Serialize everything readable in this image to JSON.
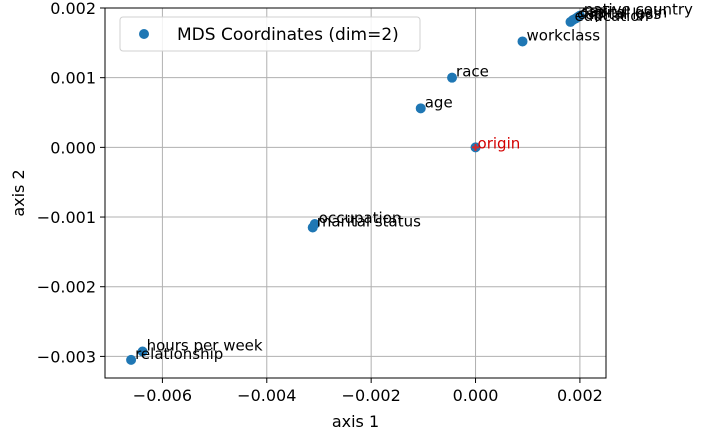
{
  "chart_data": {
    "type": "scatter",
    "xlabel": "axis 1",
    "ylabel": "axis 2",
    "xlim": [
      -0.0071,
      0.0025
    ],
    "ylim": [
      -0.00331,
      0.002
    ],
    "xticks": [
      -0.006,
      -0.004,
      -0.002,
      0.0,
      0.002
    ],
    "xtick_labels": [
      "−0.006",
      "−0.004",
      "−0.002",
      "0.000",
      "0.002"
    ],
    "yticks": [
      -0.003,
      -0.002,
      -0.001,
      0.0,
      0.001,
      0.002
    ],
    "ytick_labels": [
      "−0.003",
      "−0.002",
      "−0.001",
      "0.000",
      "0.001",
      "0.002"
    ],
    "grid": true,
    "legend": {
      "position": "top-left",
      "entries": [
        "MDS Coordinates (dim=2)"
      ]
    },
    "colors": {
      "points": "#1f77b4",
      "origin": "#d62728",
      "origin_label": "#d40000",
      "grid": "#b0b0b0"
    },
    "series": [
      {
        "name": "MDS Coordinates (dim=2)",
        "points": [
          {
            "label": "relationship",
            "x": -0.0066,
            "y": -0.00305
          },
          {
            "label": "hours per week",
            "x": -0.00638,
            "y": -0.00293
          },
          {
            "label": "marital status",
            "x": -0.00312,
            "y": -0.00115
          },
          {
            "label": "occupation",
            "x": -0.00308,
            "y": -0.0011
          },
          {
            "label": "age",
            "x": -0.00105,
            "y": 0.00056
          },
          {
            "label": "race",
            "x": -0.00045,
            "y": 0.001
          },
          {
            "label": "workclass",
            "x": 0.0009,
            "y": 0.00152
          },
          {
            "label": "education",
            "x": 0.00182,
            "y": 0.0018
          },
          {
            "label": "capital loss",
            "x": 0.00187,
            "y": 0.00183
          },
          {
            "label": "capital gain",
            "x": 0.00192,
            "y": 0.00185
          },
          {
            "label": "sex",
            "x": 0.00196,
            "y": 0.00187
          },
          {
            "label": "native country",
            "x": 0.002,
            "y": 0.00189
          }
        ]
      }
    ],
    "origin": {
      "label": "origin",
      "x": 0.0,
      "y": 0.0
    }
  }
}
